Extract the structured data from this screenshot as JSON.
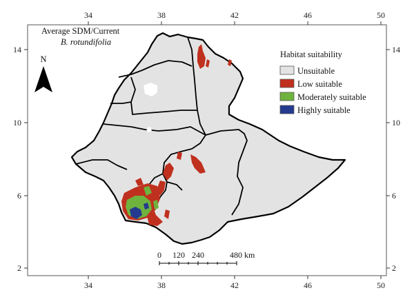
{
  "title": {
    "line1": "Average SDM/Current",
    "line2": "B. rotundifolia"
  },
  "north_arrow": {
    "label": "N",
    "icon": "north-arrow-icon"
  },
  "axes": {
    "x_ticks": [
      "34",
      "38",
      "42",
      "46",
      "50"
    ],
    "y_ticks": [
      "14",
      "10",
      "6",
      "2"
    ]
  },
  "legend": {
    "title": "Habitat suitability",
    "items": [
      {
        "label": "Unsuitable",
        "color": "#e3e3e3"
      },
      {
        "label": "Low suitable",
        "color": "#c0301e"
      },
      {
        "label": "Moderately suitable",
        "color": "#6fb23e"
      },
      {
        "label": "Highly suitable",
        "color": "#233a8e"
      }
    ]
  },
  "scale_bar": {
    "labels": [
      "0",
      "120",
      "240",
      "480 km"
    ]
  },
  "colors": {
    "land": "#e3e3e3",
    "border": "#000000",
    "low": "#c0301e",
    "moderate": "#6fb23e",
    "high": "#233a8e"
  }
}
